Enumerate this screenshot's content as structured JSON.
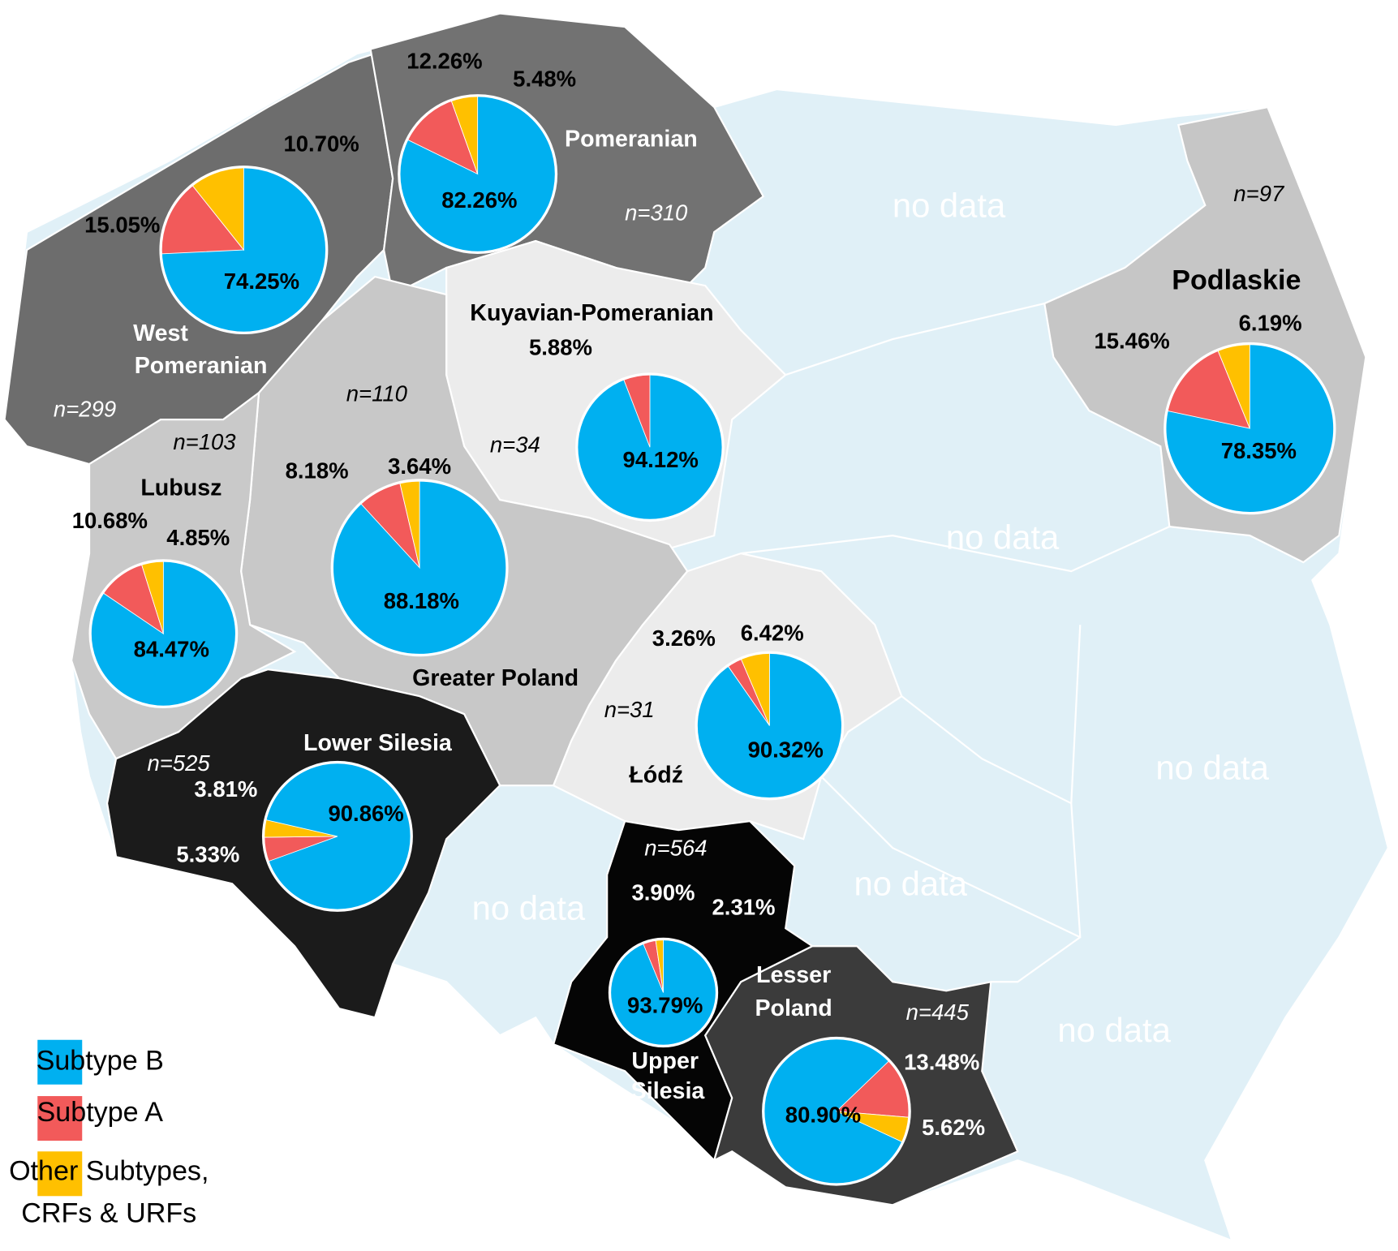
{
  "legend": [
    {
      "label": [
        "Subtype B"
      ],
      "color": "#00b0f0"
    },
    {
      "label": [
        "Subtype A"
      ],
      "color": "#f25a5a"
    },
    {
      "label": [
        "Other Subtypes,",
        "CRFs & URFs"
      ],
      "color": "#ffc000"
    }
  ],
  "regions": [
    {
      "name": [
        "West",
        "Pomeranian"
      ],
      "n": "n=299",
      "pie": {
        "values": [
          74.25,
          15.05,
          10.7
        ],
        "value_labels": [
          "74.25%",
          "15.05%",
          "10.70%"
        ]
      }
    },
    {
      "name": [
        "Pomeranian"
      ],
      "n": "n=310",
      "pie": {
        "values": [
          82.26,
          12.26,
          5.48
        ],
        "value_labels": [
          "82.26%",
          "12.26%",
          "5.48%"
        ]
      }
    },
    {
      "name": [
        "Kuyavian-Pomeranian"
      ],
      "n": "n=34",
      "pie": {
        "values": [
          94.12,
          5.88
        ],
        "value_labels": [
          "94.12%",
          "5.88%"
        ]
      }
    },
    {
      "name": [
        "Podlaskie"
      ],
      "n": "n=97",
      "pie": {
        "values": [
          78.35,
          15.46,
          6.19
        ],
        "value_labels": [
          "78.35%",
          "15.46%",
          "6.19%"
        ]
      }
    },
    {
      "name": [
        "Greater Poland"
      ],
      "n": "n=110",
      "pie": {
        "values": [
          88.18,
          8.18,
          3.64
        ],
        "value_labels": [
          "88.18%",
          "8.18%",
          "3.64%"
        ]
      }
    },
    {
      "name": [
        "Lubusz"
      ],
      "n": "n=103",
      "pie": {
        "values": [
          84.47,
          10.68,
          4.85
        ],
        "value_labels": [
          "84.47%",
          "10.68%",
          "4.85%"
        ]
      }
    },
    {
      "name": [
        "Łódź"
      ],
      "n": "n=31",
      "pie": {
        "values": [
          90.32,
          3.26,
          6.42
        ],
        "value_labels": [
          "90.32%",
          "3.26%",
          "6.42%"
        ]
      }
    },
    {
      "name": [
        "Lower Silesia"
      ],
      "n": "n=525",
      "pie": {
        "values": [
          90.86,
          5.33,
          3.81
        ],
        "value_labels": [
          "90.86%",
          "5.33%",
          "3.81%"
        ]
      }
    },
    {
      "name": [
        "Upper",
        "Silesia"
      ],
      "n": "n=564",
      "pie": {
        "values": [
          93.79,
          3.9,
          2.31
        ],
        "value_labels": [
          "93.79%",
          "3.90%",
          "2.31%"
        ]
      }
    },
    {
      "name": [
        "Lesser",
        "Poland"
      ],
      "n": "n=445",
      "pie": {
        "values": [
          80.9,
          13.48,
          5.62
        ],
        "value_labels": [
          "80.90%",
          "13.48%",
          "5.62%"
        ]
      }
    }
  ],
  "no_data": [
    "no data",
    "no data",
    "no data",
    "no data",
    "no data",
    "no data"
  ]
}
